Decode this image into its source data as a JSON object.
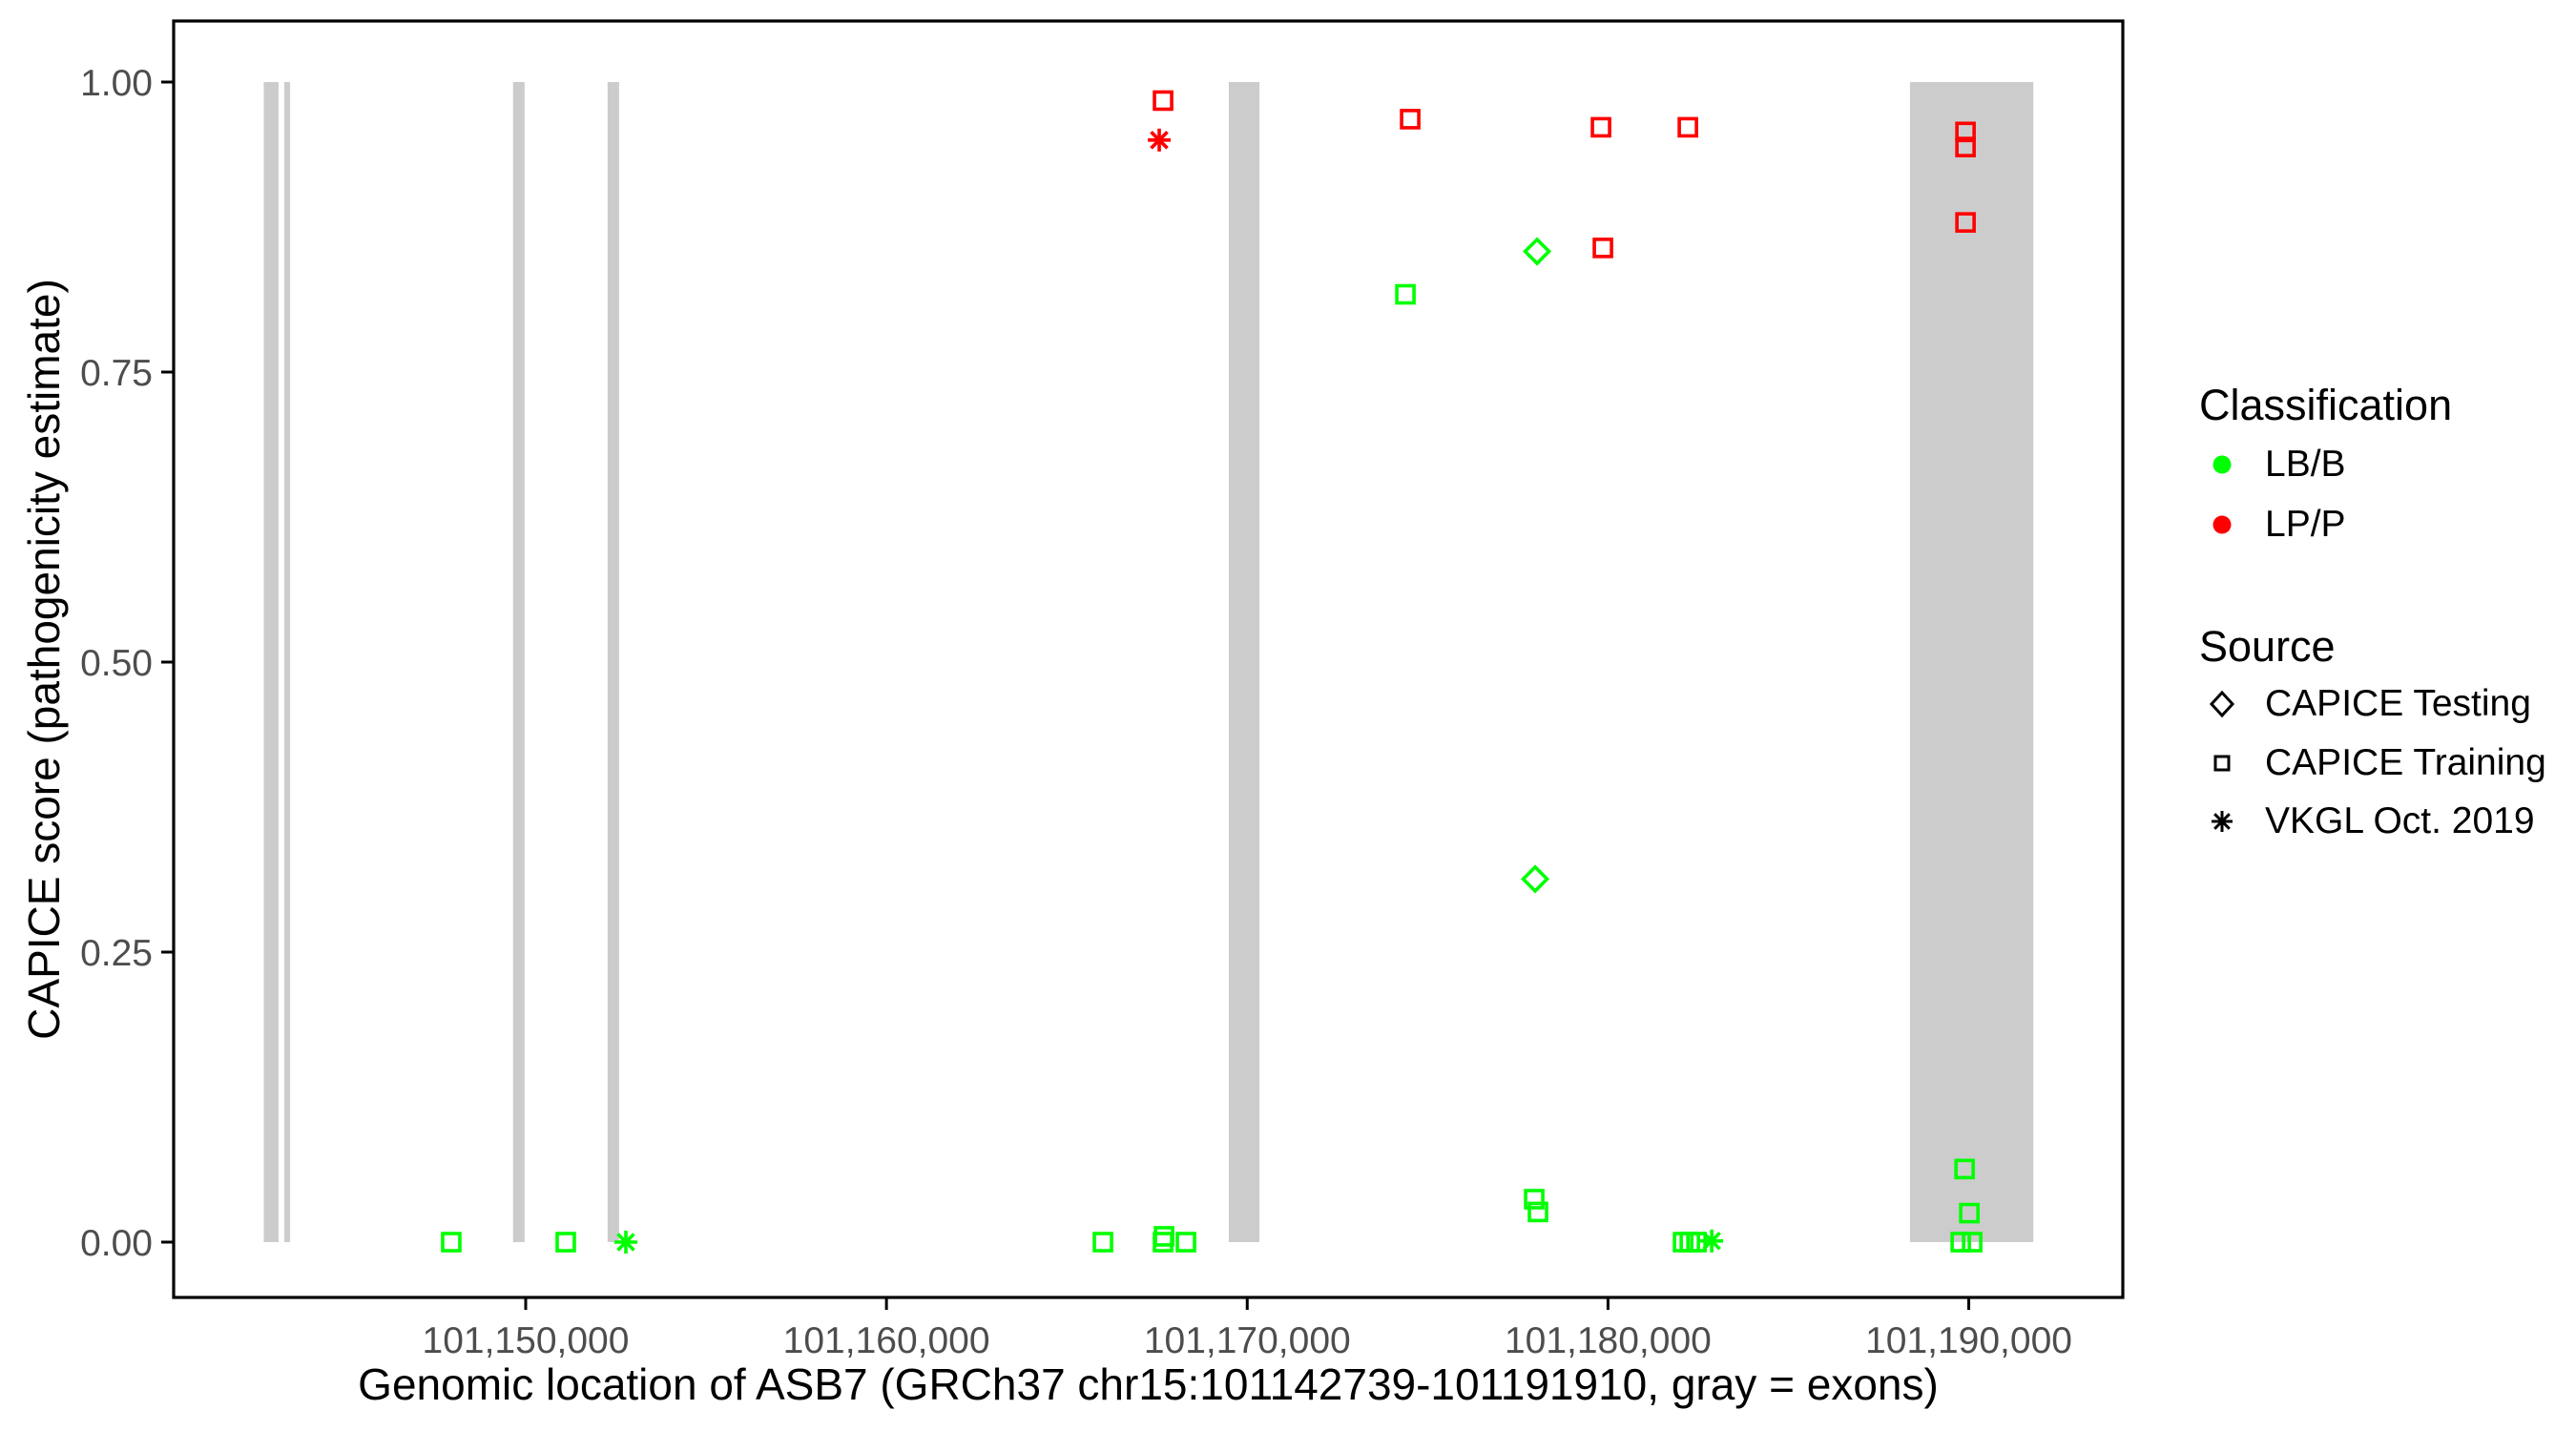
{
  "chart_data": {
    "type": "scatter",
    "title": "",
    "xlabel": "Genomic location of ASB7 (GRCh37 chr15:101142739-101191910, gray = exons)",
    "ylabel": "CAPICE score (pathogenicity estimate)",
    "xlim": [
      101140242,
      101194270
    ],
    "ylim": [
      -0.048,
      1.053
    ],
    "grid": false,
    "legend_position": "right",
    "x_ticks": [
      {
        "value": 101150000,
        "label": "101,150,000"
      },
      {
        "value": 101160000,
        "label": "101,160,000"
      },
      {
        "value": 101170000,
        "label": "101,170,000"
      },
      {
        "value": 101180000,
        "label": "101,180,000"
      },
      {
        "value": 101190000,
        "label": "101,190,000"
      }
    ],
    "y_ticks": [
      {
        "value": 0.0,
        "label": "0.00"
      },
      {
        "value": 0.25,
        "label": "0.25"
      },
      {
        "value": 0.5,
        "label": "0.50"
      },
      {
        "value": 0.75,
        "label": "0.75"
      },
      {
        "value": 1.0,
        "label": "1.00"
      }
    ],
    "exon_bands": [
      {
        "start": 101142739,
        "end": 101143150
      },
      {
        "start": 101143310,
        "end": 101143470
      },
      {
        "start": 101149650,
        "end": 101149970
      },
      {
        "start": 101152270,
        "end": 101152590
      },
      {
        "start": 101169490,
        "end": 101170340
      },
      {
        "start": 101188370,
        "end": 101191790
      }
    ],
    "exon_band_value_range": [
      0,
      1
    ],
    "colors": {
      "LB/B": "#00FF00",
      "LP/P": "#FF0000",
      "exon": "#CCCCCC",
      "axis_text": "#4D4D4D",
      "axis_line": "#000000"
    },
    "shapes": {
      "CAPICE Testing": "diamond",
      "CAPICE Training": "square",
      "VKGL Oct. 2019": "asterisk"
    },
    "points": [
      {
        "bp": 101167667,
        "score": 0.984,
        "classification": "LP/P",
        "source": "CAPICE Training"
      },
      {
        "bp": 101167561,
        "score": 0.95,
        "classification": "LP/P",
        "source": "VKGL Oct. 2019"
      },
      {
        "bp": 101174517,
        "score": 0.968,
        "classification": "LP/P",
        "source": "CAPICE Training"
      },
      {
        "bp": 101179806,
        "score": 0.961,
        "classification": "LP/P",
        "source": "CAPICE Training"
      },
      {
        "bp": 101182214,
        "score": 0.961,
        "classification": "LP/P",
        "source": "CAPICE Training"
      },
      {
        "bp": 101179859,
        "score": 0.857,
        "classification": "LP/P",
        "source": "CAPICE Training"
      },
      {
        "bp": 101189910,
        "score": 0.957,
        "classification": "LP/P",
        "source": "CAPICE Training"
      },
      {
        "bp": 101189910,
        "score": 0.944,
        "classification": "LP/P",
        "source": "CAPICE Training"
      },
      {
        "bp": 101189910,
        "score": 0.879,
        "classification": "LP/P",
        "source": "CAPICE Training"
      },
      {
        "bp": 101178034,
        "score": 0.854,
        "classification": "LB/B",
        "source": "CAPICE Testing"
      },
      {
        "bp": 101177981,
        "score": 0.313,
        "classification": "LB/B",
        "source": "CAPICE Testing"
      },
      {
        "bp": 101174385,
        "score": 0.817,
        "classification": "LB/B",
        "source": "CAPICE Training"
      },
      {
        "bp": 101177955,
        "score": 0.037,
        "classification": "LB/B",
        "source": "CAPICE Training"
      },
      {
        "bp": 101178060,
        "score": 0.026,
        "classification": "LB/B",
        "source": "CAPICE Training"
      },
      {
        "bp": 101147937,
        "score": 0.0,
        "classification": "LB/B",
        "source": "CAPICE Training"
      },
      {
        "bp": 101151111,
        "score": 0.0,
        "classification": "LB/B",
        "source": "CAPICE Training"
      },
      {
        "bp": 101152777,
        "score": 0.0,
        "classification": "LB/B",
        "source": "VKGL Oct. 2019"
      },
      {
        "bp": 101166001,
        "score": 0.0,
        "classification": "LB/B",
        "source": "CAPICE Training"
      },
      {
        "bp": 101167694,
        "score": 0.005,
        "classification": "LB/B",
        "source": "CAPICE Training"
      },
      {
        "bp": 101167667,
        "score": 0.0,
        "classification": "LB/B",
        "source": "CAPICE Training"
      },
      {
        "bp": 101168302,
        "score": 0.0,
        "classification": "LB/B",
        "source": "CAPICE Training"
      },
      {
        "bp": 101182082,
        "score": 0.0,
        "classification": "LB/B",
        "source": "CAPICE Training"
      },
      {
        "bp": 101182268,
        "score": 0.0,
        "classification": "LB/B",
        "source": "CAPICE Training"
      },
      {
        "bp": 101182453,
        "score": 0.0,
        "classification": "LB/B",
        "source": "CAPICE Training"
      },
      {
        "bp": 101182875,
        "score": 0.001,
        "classification": "LB/B",
        "source": "VKGL Oct. 2019"
      },
      {
        "bp": 101189884,
        "score": 0.063,
        "classification": "LB/B",
        "source": "CAPICE Training"
      },
      {
        "bp": 101190016,
        "score": 0.025,
        "classification": "LB/B",
        "source": "CAPICE Training"
      },
      {
        "bp": 101189778,
        "score": 0.0,
        "classification": "LB/B",
        "source": "CAPICE Training"
      },
      {
        "bp": 101190095,
        "score": 0.0,
        "classification": "LB/B",
        "source": "CAPICE Training"
      }
    ]
  },
  "legend": {
    "classification_title": "Classification",
    "classification_items": [
      {
        "label": "LB/B",
        "color": "#00FF00"
      },
      {
        "label": "LP/P",
        "color": "#FF0000"
      }
    ],
    "source_title": "Source",
    "source_items": [
      {
        "label": "CAPICE Testing",
        "shape": "diamond"
      },
      {
        "label": "CAPICE Training",
        "shape": "square"
      },
      {
        "label": "VKGL Oct. 2019",
        "shape": "asterisk"
      }
    ]
  }
}
